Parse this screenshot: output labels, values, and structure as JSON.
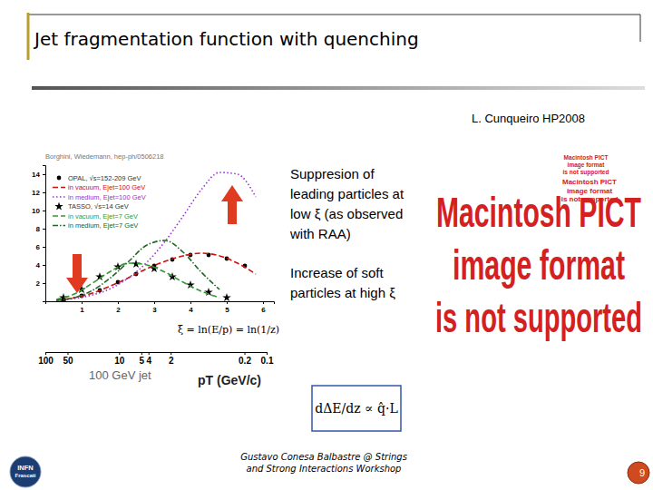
{
  "slide": {
    "title": "Jet fragmentation function with quenching",
    "credit": "L. Cunqueiro HP2008",
    "notes": [
      [
        "Suppresion of",
        "leading particles at",
        "low ξ (as observed",
        "with RAA)"
      ],
      [
        "Increase of soft",
        "particles at high ξ"
      ]
    ],
    "formula": "dΔE/dz ∝ q̂·L",
    "placeholder": [
      "Macintosh PICT",
      "image format",
      "is not supported"
    ],
    "footer": [
      "Gustavo Conesa Balbastre @ Strings",
      "and Strong Interactions Workshop"
    ],
    "logo": [
      "INFN",
      "Frascati"
    ],
    "page": 9
  },
  "chart_data": [
    {
      "type": "line",
      "title": "Borghini, Wiedemann, hep-ph/0506218",
      "annotations": [
        "ξ = ln(E/p) = ln(1/z)"
      ],
      "xlim": [
        0,
        6.3
      ],
      "ylim": [
        0,
        15
      ],
      "xticks": [
        1,
        2,
        3,
        4,
        5,
        6
      ],
      "yticks": [
        2,
        4,
        6,
        8,
        10,
        12,
        14
      ],
      "grid": false,
      "legend": "upper left",
      "series": [
        {
          "name": "OPAL, √s=152-209 GeV",
          "type": "scatter",
          "marker": "circle",
          "color": "#000000",
          "x": [
            0.5,
            1,
            1.5,
            2,
            2.5,
            3,
            3.5,
            4,
            4.5,
            5,
            5.5
          ],
          "values": [
            0.2,
            0.6,
            1.2,
            2.1,
            3.0,
            3.9,
            4.6,
            5.1,
            5.1,
            4.7,
            3.9
          ]
        },
        {
          "name": "in vacuum, Ejet=100 GeV",
          "type": "line",
          "line_style": "dashed",
          "color": "#cc1111",
          "x": [
            0.3,
            0.8,
            1.3,
            1.8,
            2.3,
            2.8,
            3.3,
            3.8,
            4.3,
            4.8,
            5.3,
            5.8
          ],
          "values": [
            0.1,
            0.4,
            0.9,
            1.7,
            2.6,
            3.6,
            4.4,
            5.0,
            5.3,
            5.0,
            4.2,
            3.0
          ]
        },
        {
          "name": "in medium, Ejet=100 GeV",
          "type": "line",
          "line_style": "dotted",
          "color": "#9933cc",
          "x": [
            0.3,
            0.8,
            1.3,
            1.8,
            2.3,
            2.8,
            3.3,
            3.8,
            4.3,
            4.8,
            5.3,
            5.8
          ],
          "values": [
            0.1,
            0.3,
            0.7,
            1.4,
            2.6,
            4.3,
            6.6,
            9.4,
            12.3,
            14.2,
            14.0,
            11.5
          ]
        },
        {
          "name": "TASSO, √s=14 GeV",
          "type": "scatter",
          "marker": "star",
          "color": "#000000",
          "x": [
            0.5,
            1,
            1.5,
            2,
            2.5,
            3,
            3.5,
            4,
            4.5,
            5
          ],
          "values": [
            0.4,
            1.3,
            2.7,
            3.8,
            4.1,
            3.6,
            2.7,
            1.8,
            1.0,
            0.4
          ]
        },
        {
          "name": "in vacuum, Ejet=7 GeV",
          "type": "line",
          "line_style": "dashed",
          "color": "#339933",
          "x": [
            0.3,
            0.8,
            1.3,
            1.8,
            2.3,
            2.8,
            3.3,
            3.8,
            4.3,
            4.8
          ],
          "values": [
            0.2,
            0.8,
            2.0,
            3.3,
            4.2,
            4.0,
            3.2,
            2.1,
            1.1,
            0.4
          ]
        },
        {
          "name": "in medium, Ejet=7 GeV",
          "type": "line",
          "line_style": "dashdot",
          "color": "#226622",
          "x": [
            0.3,
            0.8,
            1.3,
            1.8,
            2.3,
            2.8,
            3.3,
            3.8,
            4.3,
            4.8
          ],
          "values": [
            0.1,
            0.4,
            1.2,
            2.6,
            4.4,
            6.2,
            6.7,
            5.4,
            3.2,
            1.3
          ]
        }
      ]
    },
    {
      "type": "axis",
      "title": "100 GeV jet",
      "xlabel": "pT (GeV/c)",
      "log": "x",
      "xlim": [
        100,
        0.1
      ],
      "xticks": [
        100,
        50,
        10,
        5,
        4,
        2,
        0.2,
        0.1
      ]
    }
  ]
}
